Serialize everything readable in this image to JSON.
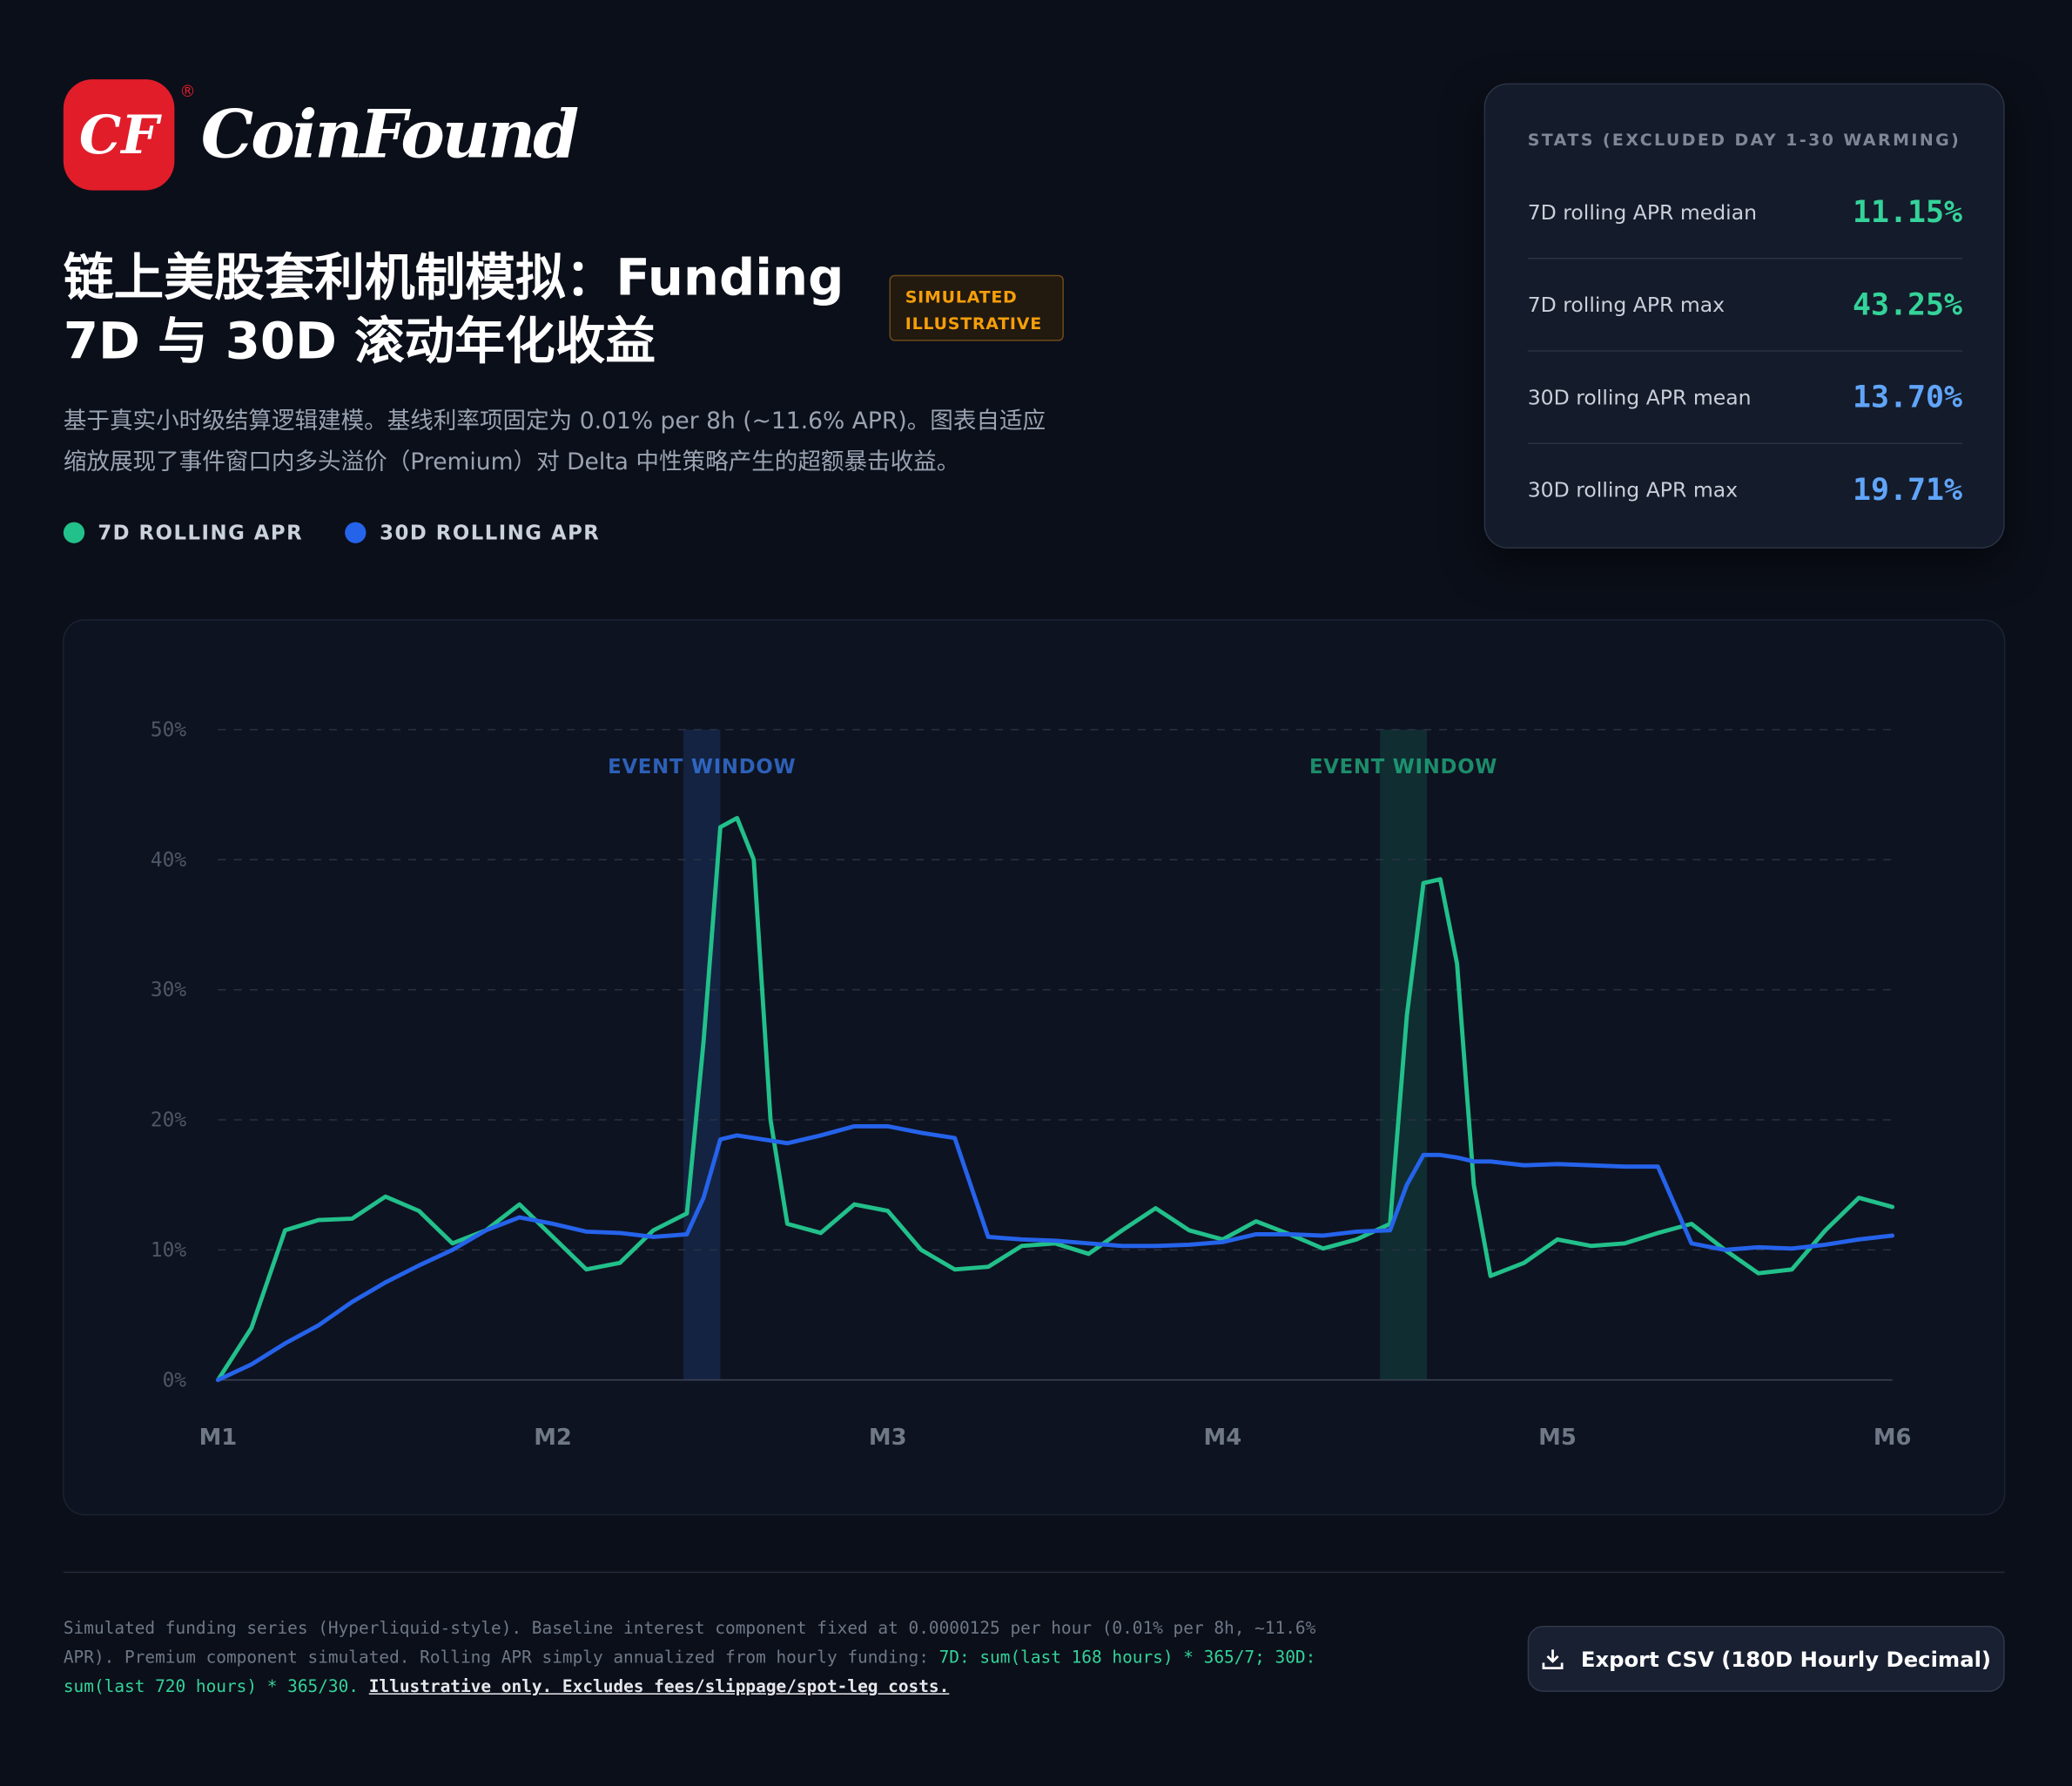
{
  "brand": {
    "logo": "CF",
    "name": "CoinFound"
  },
  "header": {
    "title_line1": "链上美股套利机制模拟：Funding",
    "title_line2": "7D 与 30D 滚动年化收益",
    "badge_line1": "SIMULATED",
    "badge_line2": "ILLUSTRATIVE",
    "subtitle_line1": "基于真实小时级结算逻辑建模。基线利率项固定为 0.01% per 8h (~11.6% APR)。图表自适应",
    "subtitle_line2": "缩放展现了事件窗口内多头溢价（Premium）对 Delta 中性策略产生的超额暴击收益。"
  },
  "stats": {
    "title": "STATS (EXCLUDED DAY 1-30 WARMING)",
    "rows": [
      {
        "label": "7D rolling APR median",
        "value": "11.15%",
        "color": "#34d399"
      },
      {
        "label": "7D rolling APR max",
        "value": "43.25%",
        "color": "#34d399"
      },
      {
        "label": "30D rolling APR mean",
        "value": "13.70%",
        "color": "#60a5fa"
      },
      {
        "label": "30D rolling APR max",
        "value": "19.71%",
        "color": "#60a5fa"
      }
    ]
  },
  "chart_data": {
    "type": "line",
    "x": [
      0,
      0.1,
      0.2,
      0.3,
      0.4,
      0.5,
      0.6,
      0.7,
      0.8,
      0.9,
      1.0,
      1.1,
      1.2,
      1.3,
      1.4,
      1.45,
      1.5,
      1.55,
      1.6,
      1.65,
      1.7,
      1.8,
      1.9,
      2.0,
      2.1,
      2.2,
      2.3,
      2.4,
      2.5,
      2.6,
      2.7,
      2.8,
      2.9,
      3.0,
      3.1,
      3.2,
      3.3,
      3.4,
      3.5,
      3.55,
      3.6,
      3.65,
      3.7,
      3.75,
      3.8,
      3.9,
      4.0,
      4.1,
      4.2,
      4.3,
      4.4,
      4.5,
      4.6,
      4.7,
      4.8,
      4.9,
      5.0
    ],
    "series": [
      {
        "name": "7D ROLLING APR",
        "color": "#22c08a",
        "values": [
          0,
          4,
          11.5,
          12.3,
          12.4,
          14.1,
          13,
          10.5,
          11.5,
          13.5,
          11,
          8.5,
          9,
          11.5,
          12.8,
          26,
          42.5,
          43.2,
          40,
          20,
          12,
          11.3,
          13.5,
          13,
          10,
          8.5,
          8.7,
          10.3,
          10.5,
          9.7,
          11.5,
          13.2,
          11.5,
          10.8,
          12.2,
          11.2,
          10.1,
          10.8,
          12,
          28,
          38.2,
          38.5,
          32,
          15,
          8,
          9,
          10.8,
          10.3,
          10.5,
          11.3,
          12,
          10,
          8.2,
          8.5,
          11.5,
          14,
          13.3
        ]
      },
      {
        "name": "30D ROLLING APR",
        "color": "#2563eb",
        "values": [
          0,
          1.2,
          2.8,
          4.2,
          6,
          7.5,
          8.8,
          10,
          11.5,
          12.5,
          12,
          11.4,
          11.3,
          11,
          11.2,
          14,
          18.5,
          18.8,
          18.6,
          18.4,
          18.2,
          18.8,
          19.5,
          19.5,
          19,
          18.6,
          11,
          10.8,
          10.7,
          10.5,
          10.3,
          10.3,
          10.4,
          10.6,
          11.2,
          11.2,
          11.1,
          11.4,
          11.5,
          15,
          17.3,
          17.3,
          17.1,
          16.8,
          16.8,
          16.5,
          16.6,
          16.5,
          16.4,
          16.4,
          10.5,
          10,
          10.2,
          10.1,
          10.4,
          10.8,
          11.1
        ]
      }
    ],
    "xlim": [
      0,
      5
    ],
    "xticks": [
      {
        "value": 0,
        "label": "M1"
      },
      {
        "value": 1,
        "label": "M2"
      },
      {
        "value": 2,
        "label": "M3"
      },
      {
        "value": 3,
        "label": "M4"
      },
      {
        "value": 4,
        "label": "M5"
      },
      {
        "value": 5,
        "label": "M6"
      }
    ],
    "ylim": [
      0,
      50
    ],
    "yticks": [
      {
        "value": 0,
        "label": "0%"
      },
      {
        "value": 10,
        "label": "10%"
      },
      {
        "value": 20,
        "label": "20%"
      },
      {
        "value": 30,
        "label": "30%"
      },
      {
        "value": 40,
        "label": "40%"
      },
      {
        "value": 50,
        "label": "50%"
      }
    ],
    "grid": true,
    "event_windows": [
      {
        "label": "EVENT WINDOW",
        "start": 1.39,
        "end": 1.5,
        "color": "#3b82f6"
      },
      {
        "label": "EVENT WINDOW",
        "start": 3.47,
        "end": 3.61,
        "color": "#22c08a"
      }
    ]
  },
  "footer": {
    "note_plain": "Simulated funding series (Hyperliquid-style). Baseline interest component fixed at 0.0000125 per hour (0.01% per 8h, ~11.6% APR). Premium component simulated. Rolling APR simply annualized from hourly funding: ",
    "note_formula": "7D: sum(last 168 hours) * 365/7; 30D: sum(last 720 hours) * 365/30.",
    "note_disclaimer": "Illustrative only. Excludes fees/slippage/spot-leg costs.",
    "button": "Export CSV (180D Hourly Decimal)"
  }
}
